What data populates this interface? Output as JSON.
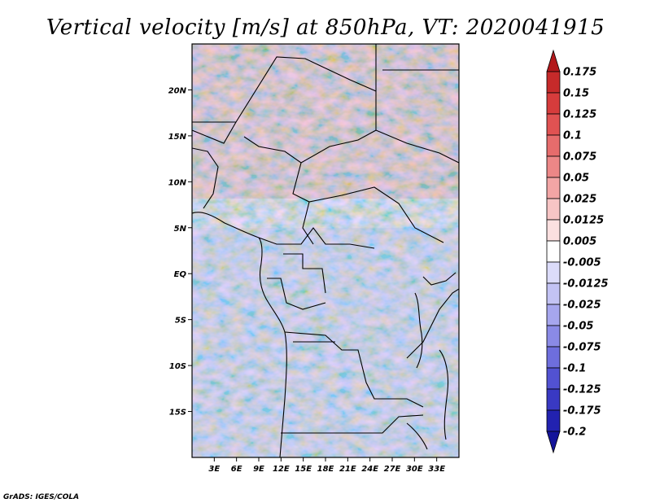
{
  "title": "Vertical velocity [m/s] at 850hPa, VT: 2020041915",
  "credit": "GrADS: IGES/COLA",
  "map": {
    "lon_range": [
      0,
      36
    ],
    "lat_range": [
      -20,
      25
    ],
    "lat_ticks": [
      {
        "value": 20,
        "label": "20N"
      },
      {
        "value": 15,
        "label": "15N"
      },
      {
        "value": 10,
        "label": "10N"
      },
      {
        "value": 5,
        "label": "5N"
      },
      {
        "value": 0,
        "label": "EQ"
      },
      {
        "value": -5,
        "label": "5S"
      },
      {
        "value": -10,
        "label": "10S"
      },
      {
        "value": -15,
        "label": "15S"
      }
    ],
    "lon_ticks": [
      {
        "value": 3,
        "label": "3E"
      },
      {
        "value": 6,
        "label": "6E"
      },
      {
        "value": 9,
        "label": "9E"
      },
      {
        "value": 12,
        "label": "12E"
      },
      {
        "value": 15,
        "label": "15E"
      },
      {
        "value": 18,
        "label": "18E"
      },
      {
        "value": 21,
        "label": "21E"
      },
      {
        "value": 24,
        "label": "24E"
      },
      {
        "value": 27,
        "label": "27E"
      },
      {
        "value": 30,
        "label": "30E"
      },
      {
        "value": 33,
        "label": "33E"
      }
    ]
  },
  "colorbar": {
    "labels": [
      "0.175",
      "0.15",
      "0.125",
      "0.1",
      "0.075",
      "0.05",
      "0.025",
      "0.0125",
      "0.005",
      "-0.005",
      "-0.0125",
      "-0.025",
      "-0.05",
      "-0.075",
      "-0.1",
      "-0.125",
      "-0.175",
      "-0.2"
    ],
    "colors": [
      "#b2181b",
      "#c62a2a",
      "#d63c3c",
      "#e05252",
      "#e66c6c",
      "#ec8787",
      "#f2a5a5",
      "#f7c5c5",
      "#fbe0e0",
      "#ffffff",
      "#dcdcfa",
      "#c3c3f4",
      "#a6a6ee",
      "#8a8ae6",
      "#6e6edd",
      "#5252d2",
      "#3939c3",
      "#2222b0",
      "#14149a"
    ]
  }
}
